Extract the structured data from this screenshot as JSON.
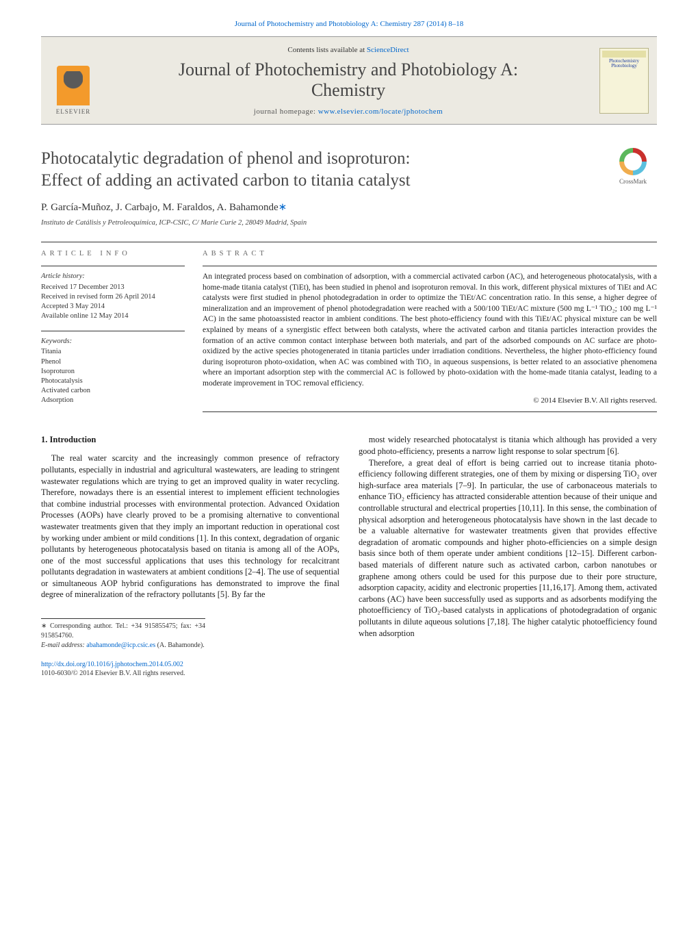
{
  "top_citation": "Journal of Photochemistry and Photobiology A: Chemistry 287 (2014) 8–18",
  "masthead": {
    "contents_prefix": "Contents lists available at ",
    "contents_link": "ScienceDirect",
    "journal_line1": "Journal of Photochemistry and Photobiology A:",
    "journal_line2": "Chemistry",
    "homepage_prefix": "journal homepage: ",
    "homepage_link": "www.elsevier.com/locate/jphotochem",
    "publisher_logo_text": "ELSEVIER",
    "cover_title_a": "Photochemistry",
    "cover_title_b": "Photobiology"
  },
  "article": {
    "title_l1": "Photocatalytic degradation of phenol and isoproturon:",
    "title_l2": "Effect of adding an activated carbon to titania catalyst",
    "crossmark_label": "CrossMark",
    "authors": "P. García-Muñoz, J. Carbajo, M. Faraldos, A. Bahamonde",
    "affiliation": "Instituto de Catálisis y Petroleoquímica, ICP-CSIC, C/ Marie Curie 2, 28049 Madrid, Spain"
  },
  "info": {
    "heading": "article info",
    "history_label": "Article history:",
    "received": "Received 17 December 2013",
    "revised": "Received in revised form 26 April 2014",
    "accepted": "Accepted 3 May 2014",
    "online": "Available online 12 May 2014",
    "keywords_label": "Keywords:",
    "keywords": [
      "Titania",
      "Phenol",
      "Isoproturon",
      "Photocatalysis",
      "Activated carbon",
      "Adsorption"
    ]
  },
  "abstract": {
    "heading": "abstract",
    "text": "An integrated process based on combination of adsorption, with a commercial activated carbon (AC), and heterogeneous photocatalysis, with a home-made titania catalyst (TiEt), has been studied in phenol and isoproturon removal. In this work, different physical mixtures of TiEt and AC catalysts were first studied in phenol photodegradation in order to optimize the TiEt/AC concentration ratio. In this sense, a higher degree of mineralization and an improvement of phenol photodegradation were reached with a 500/100 TiEt/AC mixture (500 mg L⁻¹ TiO₂; 100 mg L⁻¹ AC) in the same photoassisted reactor in ambient conditions. The best photo-efficiency found with this TiEt/AC physical mixture can be well explained by means of a synergistic effect between both catalysts, where the activated carbon and titania particles interaction provides the formation of an active common contact interphase between both materials, and part of the adsorbed compounds on AC surface are photo-oxidized by the active species photogenerated in titania particles under irradiation conditions. Nevertheless, the higher photo-efficiency found during isoproturon photo-oxidation, when AC was combined with TiO₂ in aqueous suspensions, is better related to an associative phenomena where an important adsorption step with the commercial AC is followed by photo-oxidation with the home-made titania catalyst, leading to a moderate improvement in TOC removal efficiency.",
    "copyright": "© 2014 Elsevier B.V. All rights reserved."
  },
  "body": {
    "section_number": "1.",
    "section_title": "Introduction",
    "col1_p1": "The real water scarcity and the increasingly common presence of refractory pollutants, especially in industrial and agricultural wastewaters, are leading to stringent wastewater regulations which are trying to get an improved quality in water recycling. Therefore, nowadays there is an essential interest to implement efficient technologies that combine industrial processes with environmental protection. Advanced Oxidation Processes (AOPs) have clearly proved to be a promising alternative to conventional wastewater treatments given that they imply an important reduction in operational cost by working under ambient or mild conditions [1]. In this context, degradation of organic pollutants by heterogeneous photocatalysis based on titania is among all of the AOPs, one of the most successful applications that uses this technology for recalcitrant pollutants degradation in wastewaters at ambient conditions [2–4]. The use of sequential or simultaneous AOP hybrid configurations has demonstrated to improve the final degree of mineralization of the refractory pollutants [5]. By far the",
    "col2_p1": "most widely researched photocatalyst is titania which although has provided a very good photo-efficiency, presents a narrow light response to solar spectrum [6].",
    "col2_p2": "Therefore, a great deal of effort is being carried out to increase titania photo-efficiency following different strategies, one of them by mixing or dispersing TiO₂ over high-surface area materials [7–9]. In particular, the use of carbonaceous materials to enhance TiO₂ efficiency has attracted considerable attention because of their unique and controllable structural and electrical properties [10,11]. In this sense, the combination of physical adsorption and heterogeneous photocatalysis have shown in the last decade to be a valuable alternative for wastewater treatments given that provides effective degradation of aromatic compounds and higher photo-efficiencies on a simple design basis since both of them operate under ambient conditions [12–15]. Different carbon-based materials of different nature such as activated carbon, carbon nanotubes or graphene among others could be used for this purpose due to their pore structure, adsorption capacity, acidity and electronic properties [11,16,17]. Among them, activated carbons (AC) have been successfully used as supports and as adsorbents modifying the photoefficiency of TiO₂-based catalysts in applications of photodegradation of organic pollutants in dilute aqueous solutions [7,18]. The higher catalytic photoefficiency found when adsorption"
  },
  "footnotes": {
    "corresponding": "∗ Corresponding author. Tel.: +34 915855475; fax: +34 915854760.",
    "email_label": "E-mail address: ",
    "email": "abahamonde@icp.csic.es",
    "email_paren": " (A. Bahamonde)."
  },
  "bottom": {
    "doi": "http://dx.doi.org/10.1016/j.jphotochem.2014.05.002",
    "issn_line": "1010-6030/© 2014 Elsevier B.V. All rights reserved."
  },
  "colors": {
    "link": "#0066cc",
    "masthead_bg": "#eceae2",
    "text": "#1a1a1a",
    "muted": "#555555"
  }
}
